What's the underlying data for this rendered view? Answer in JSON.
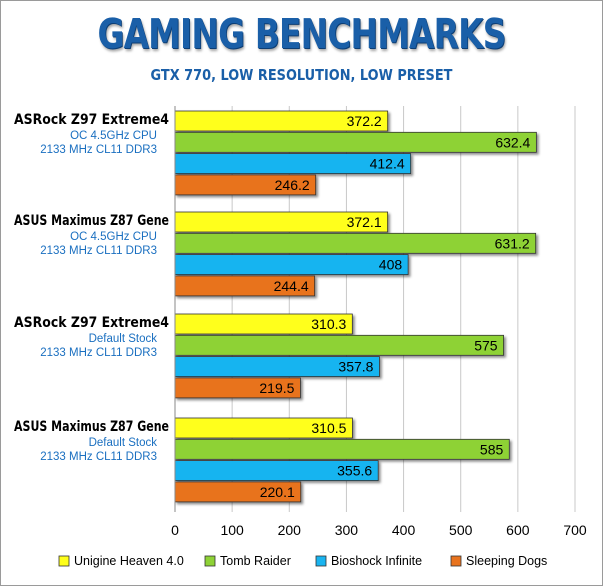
{
  "chart_data": {
    "type": "bar",
    "orientation": "horizontal",
    "title": "GAMING BENCHMARKS",
    "subtitle": "GTX 770, LOW RESOLUTION, LOW PRESET",
    "groups": [
      {
        "name": "ASRock Z97 Extreme4",
        "line2": "OC 4.5GHz CPU",
        "line3": "2133 MHz CL11 DDR3"
      },
      {
        "name": "ASUS Maximus Z87 Gene",
        "line2": "OC 4.5GHz CPU",
        "line3": "2133 MHz CL11 DDR3"
      },
      {
        "name": "ASRock Z97 Extreme4",
        "line2": "Default Stock",
        "line3": "2133 MHz CL11 DDR3"
      },
      {
        "name": "ASUS Maximus Z87 Gene",
        "line2": "Default Stock",
        "line3": "2133 MHz CL11 DDR3"
      }
    ],
    "series": [
      {
        "name": "Unigine Heaven 4.0",
        "color": "#ffff1a",
        "values": [
          372.2,
          372.1,
          310.3,
          310.5
        ]
      },
      {
        "name": "Tomb Raider",
        "color": "#8ed236",
        "values": [
          632.4,
          631.2,
          575,
          585
        ]
      },
      {
        "name": "Bioshock Infinite",
        "color": "#19b4f0",
        "values": [
          412.4,
          408,
          357.8,
          355.6
        ]
      },
      {
        "name": "Sleeping Dogs",
        "color": "#e8731e",
        "values": [
          246.2,
          244.4,
          219.5,
          220.1
        ]
      }
    ],
    "value_labels": [
      [
        "372.2",
        "632.4",
        "412.4",
        "246.2"
      ],
      [
        "372.1",
        "631.2",
        "408",
        "244.4"
      ],
      [
        "310.3",
        "575",
        "357.8",
        "219.5"
      ],
      [
        "310.5",
        "585",
        "355.6",
        "220.1"
      ]
    ],
    "xlim": [
      0,
      700
    ],
    "xticks": [
      "0",
      "100",
      "200",
      "300",
      "400",
      "500",
      "600",
      "700"
    ],
    "grid": "vertical",
    "legend_position": "bottom",
    "name_color": "#000000",
    "config_color": "#1a6fc0"
  }
}
